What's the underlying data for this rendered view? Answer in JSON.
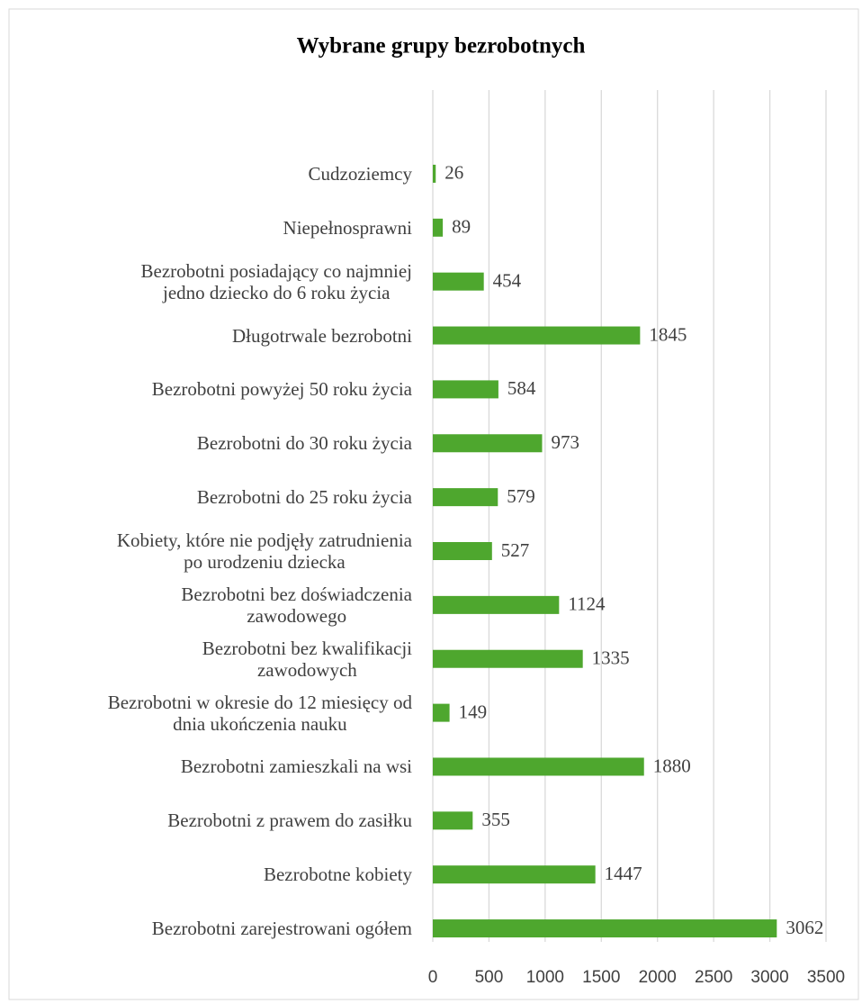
{
  "chart_data": {
    "type": "hbar",
    "title": "Wybrane grupy bezrobotnych",
    "categories": [
      "Cudzoziemcy",
      "Niepełnosprawni",
      "Bezrobotni posiadający co najmniej\njedno dziecko do 6 roku życia",
      "Długotrwale bezrobotni",
      "Bezrobotni powyżej 50 roku życia",
      "Bezrobotni do 30 roku życia",
      "Bezrobotni do 25 roku życia",
      "Kobiety, które nie podjęły zatrudnienia\npo urodzeniu dziecka",
      "Bezrobotni bez doświadczenia\nzawodowego",
      "Bezrobotni bez kwalifikacji\nzawodowych",
      "Bezrobotni w okresie do 12 miesięcy od\ndnia ukończenia nauku",
      "Bezrobotni zamieszkali na wsi",
      "Bezrobotni z prawem do zasiłku",
      "Bezrobotne kobiety",
      "Bezrobotni  zarejestrowani ogółem"
    ],
    "values": [
      26,
      89,
      454,
      1845,
      584,
      973,
      579,
      527,
      1124,
      1335,
      149,
      1880,
      355,
      1447,
      3062
    ],
    "color": "#4ea72e",
    "xlim": [
      0,
      3500
    ],
    "xticks": [
      0,
      500,
      1000,
      1500,
      2000,
      2500,
      3000,
      3500
    ],
    "grid": true
  }
}
